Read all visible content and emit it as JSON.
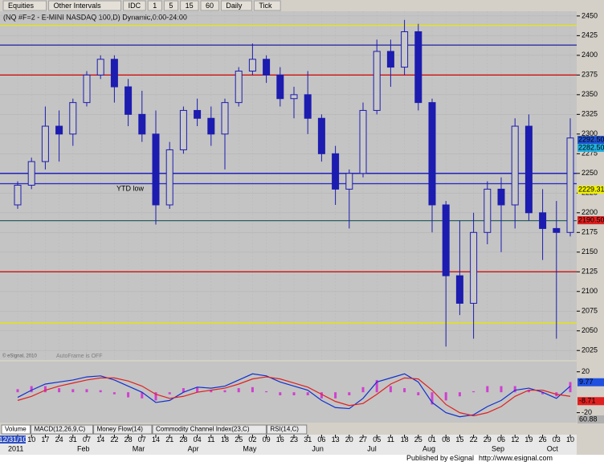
{
  "toolbar": {
    "items": [
      "Equities",
      "Other Intervals",
      "IDC",
      "1",
      "5",
      "15",
      "60",
      "Daily",
      "Tick"
    ]
  },
  "tabs": [
    "Volume",
    "MACD(12,26,9,C)",
    "Money Flow(14)",
    "Commodity Channel Index(23,C)",
    "RSI(14,C)"
  ],
  "footer": {
    "publisher": "Published by eSignal",
    "url": "http://www.esignal.com"
  },
  "chart_data": {
    "type": "candlestick",
    "title": "(NQ #F=2 - E-MINI NASDAQ 100,D) Dynamic,0:00-24:00",
    "categories": [
      "12/31/10",
      "10",
      "17",
      "24",
      "31",
      "07",
      "14",
      "22",
      "28",
      "07",
      "14",
      "21",
      "28",
      "04",
      "11",
      "18",
      "25",
      "02",
      "09",
      "16",
      "23",
      "31",
      "06",
      "13",
      "20",
      "27",
      "05",
      "11",
      "18",
      "25",
      "01",
      "08",
      "15",
      "22",
      "29",
      "06",
      "12",
      "19",
      "26",
      "03",
      "10"
    ],
    "month_labels": [
      "2011",
      null,
      null,
      null,
      null,
      "Feb",
      null,
      null,
      null,
      "Mar",
      null,
      null,
      null,
      "Apr",
      null,
      null,
      null,
      "May",
      null,
      null,
      null,
      null,
      "Jun",
      null,
      null,
      null,
      "Jul",
      null,
      null,
      null,
      "Aug",
      null,
      null,
      null,
      null,
      "Sep",
      null,
      null,
      null,
      "Oct",
      null
    ],
    "open": [
      2210,
      2235,
      2265,
      2310,
      2300,
      2340,
      2375,
      2395,
      2360,
      2325,
      2300,
      2210,
      2280,
      2330,
      2320,
      2300,
      2340,
      2380,
      2395,
      2375,
      2345,
      2350,
      2320,
      2275,
      2230,
      2250,
      2330,
      2405,
      2385,
      2430,
      2340,
      2210,
      2120,
      2085,
      2175,
      2230,
      2210,
      2310,
      2200,
      2180,
      2175
    ],
    "high": [
      2240,
      2270,
      2335,
      2330,
      2345,
      2380,
      2400,
      2400,
      2370,
      2355,
      2330,
      2290,
      2335,
      2345,
      2335,
      2345,
      2385,
      2415,
      2400,
      2385,
      2360,
      2380,
      2325,
      2285,
      2255,
      2340,
      2420,
      2420,
      2445,
      2440,
      2345,
      2215,
      2190,
      2200,
      2240,
      2245,
      2320,
      2325,
      2230,
      2215,
      2320
    ],
    "low": [
      2205,
      2230,
      2255,
      2265,
      2285,
      2335,
      2370,
      2340,
      2310,
      2290,
      2185,
      2205,
      2275,
      2310,
      2285,
      2255,
      2335,
      2375,
      2365,
      2335,
      2320,
      2300,
      2265,
      2210,
      2180,
      2245,
      2325,
      2360,
      2375,
      2330,
      2175,
      2030,
      2070,
      2040,
      2160,
      2150,
      2180,
      2190,
      2140,
      2040,
      2170
    ],
    "close": [
      2235,
      2265,
      2310,
      2300,
      2340,
      2375,
      2395,
      2360,
      2325,
      2300,
      2210,
      2280,
      2330,
      2320,
      2300,
      2340,
      2380,
      2395,
      2375,
      2345,
      2350,
      2320,
      2275,
      2230,
      2250,
      2330,
      2405,
      2385,
      2430,
      2340,
      2210,
      2120,
      2085,
      2175,
      2230,
      2210,
      2310,
      2200,
      2180,
      2175,
      2295
    ],
    "up_color": "#c8c8c8",
    "down_color": "#1c1cb0",
    "edge_color": "#1c1cb0",
    "ylim": [
      2013,
      2456
    ],
    "yticks": [
      2025,
      2050,
      2075,
      2100,
      2125,
      2150,
      2175,
      2200,
      2225,
      2250,
      2275,
      2300,
      2325,
      2350,
      2375,
      2400,
      2425,
      2450
    ],
    "grid": true,
    "levels": [
      {
        "value": 2438,
        "color": "#e8e800"
      },
      {
        "value": 2413,
        "color": "#2020a0"
      },
      {
        "value": 2375,
        "color": "#d00000"
      },
      {
        "value": 2250,
        "color": "#1010c0"
      },
      {
        "value": 2237,
        "color": "#3030c0"
      },
      {
        "value": 2190,
        "color": "#306060"
      },
      {
        "value": 2125,
        "color": "#d00000"
      },
      {
        "value": 2060,
        "color": "#e8e800"
      }
    ],
    "price_markers": [
      {
        "value": 2292.5,
        "label": "2292.50",
        "color": "#2050d0"
      },
      {
        "value": 2282.5,
        "label": "2282.50",
        "color": "#20b0e0"
      },
      {
        "value": 2229.31,
        "label": "2229.31",
        "color": "#f0f000"
      },
      {
        "value": 2190.5,
        "label": "2190.50",
        "color": "#e02020"
      }
    ],
    "annotations": [
      "YTD low",
      "AutoFrame is OFF",
      "© eSignal, 2010"
    ],
    "macd": {
      "ylim": [
        -25,
        30
      ],
      "yticks": [
        20,
        -20
      ],
      "series": [
        {
          "name": "MACD",
          "color": "#1030d0",
          "values": [
            -5,
            2,
            8,
            10,
            12,
            15,
            16,
            12,
            6,
            0,
            -10,
            -8,
            0,
            5,
            4,
            6,
            12,
            18,
            16,
            10,
            6,
            2,
            -8,
            -15,
            -16,
            -6,
            10,
            14,
            18,
            10,
            -10,
            -20,
            -24,
            -22,
            -14,
            -8,
            2,
            4,
            0,
            -6,
            6
          ]
        },
        {
          "name": "Signal",
          "color": "#e02020",
          "values": [
            -8,
            -4,
            2,
            6,
            9,
            12,
            14,
            14,
            11,
            6,
            -2,
            -6,
            -4,
            0,
            2,
            4,
            8,
            13,
            15,
            13,
            9,
            5,
            -2,
            -9,
            -13,
            -11,
            -2,
            8,
            14,
            13,
            2,
            -12,
            -20,
            -23,
            -20,
            -14,
            -4,
            2,
            2,
            -2,
            -4
          ]
        }
      ],
      "histogram": {
        "color": "#d040d0",
        "values": [
          3,
          6,
          6,
          4,
          3,
          3,
          2,
          -2,
          -5,
          -6,
          -8,
          -2,
          4,
          5,
          2,
          2,
          4,
          5,
          1,
          -3,
          -3,
          -3,
          -6,
          -6,
          -3,
          5,
          12,
          6,
          4,
          -3,
          -12,
          -8,
          -4,
          1,
          6,
          6,
          6,
          2,
          -2,
          -4,
          10
        ]
      },
      "markers": [
        {
          "value": 9.77,
          "color": "#2050e0"
        },
        {
          "value": -8.71,
          "color": "#e02020"
        }
      ],
      "extra_label": "60.88"
    }
  }
}
